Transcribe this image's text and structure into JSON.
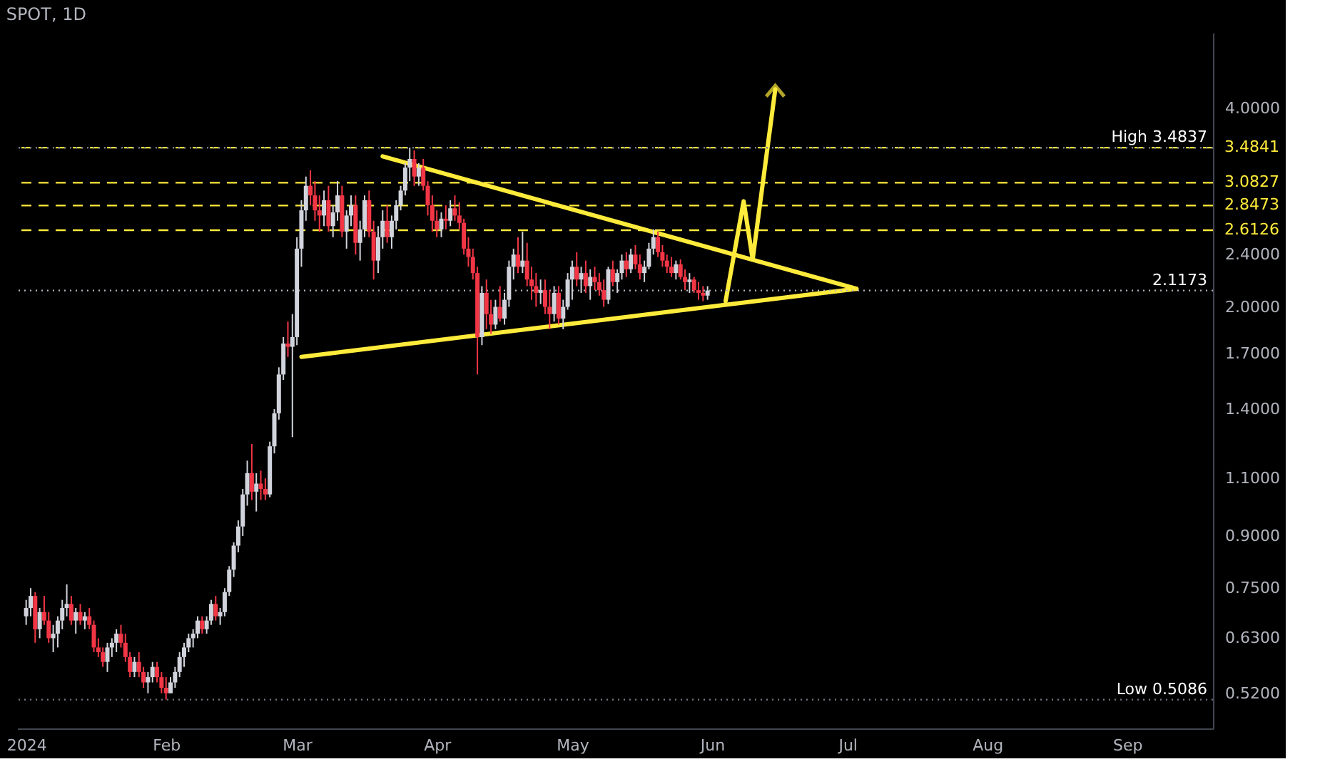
{
  "chart_data": {
    "type": "candlestick",
    "title": "SPOT, 1D",
    "x": [
      "2024-01-01",
      "2024-01-02",
      "2024-01-03",
      "2024-01-04",
      "2024-01-05",
      "2024-01-06",
      "2024-01-07",
      "2024-01-08",
      "2024-01-09",
      "2024-01-10",
      "2024-01-11",
      "2024-01-12",
      "2024-01-13",
      "2024-01-14",
      "2024-01-15",
      "2024-01-16",
      "2024-01-17",
      "2024-01-18",
      "2024-01-19",
      "2024-01-20",
      "2024-01-21",
      "2024-01-22",
      "2024-01-23",
      "2024-01-24",
      "2024-01-25",
      "2024-01-26",
      "2024-01-27",
      "2024-01-28",
      "2024-01-29",
      "2024-01-30",
      "2024-01-31",
      "2024-02-01",
      "2024-02-02",
      "2024-02-03",
      "2024-02-04",
      "2024-02-05",
      "2024-02-06",
      "2024-02-07",
      "2024-02-08",
      "2024-02-09",
      "2024-02-10",
      "2024-02-11",
      "2024-02-12",
      "2024-02-13",
      "2024-02-14",
      "2024-02-15",
      "2024-02-16",
      "2024-02-17",
      "2024-02-18",
      "2024-02-19",
      "2024-02-20",
      "2024-02-21",
      "2024-02-22",
      "2024-02-23",
      "2024-02-24",
      "2024-02-25",
      "2024-02-26",
      "2024-02-27",
      "2024-02-28",
      "2024-02-29",
      "2024-03-01",
      "2024-03-02",
      "2024-03-03",
      "2024-03-04",
      "2024-03-05",
      "2024-03-06",
      "2024-03-07",
      "2024-03-08",
      "2024-03-09",
      "2024-03-10",
      "2024-03-11",
      "2024-03-12",
      "2024-03-13",
      "2024-03-14",
      "2024-03-15",
      "2024-03-16",
      "2024-03-17",
      "2024-03-18",
      "2024-03-19",
      "2024-03-20",
      "2024-03-21",
      "2024-03-22",
      "2024-03-23",
      "2024-03-24",
      "2024-03-25",
      "2024-03-26",
      "2024-03-27",
      "2024-03-28",
      "2024-03-29",
      "2024-03-30",
      "2024-03-31",
      "2024-04-01",
      "2024-04-02",
      "2024-04-03",
      "2024-04-04",
      "2024-04-05",
      "2024-04-06",
      "2024-04-07",
      "2024-04-08",
      "2024-04-09",
      "2024-04-10",
      "2024-04-11",
      "2024-04-12",
      "2024-04-13",
      "2024-04-14",
      "2024-04-15",
      "2024-04-16",
      "2024-04-17",
      "2024-04-18",
      "2024-04-19",
      "2024-04-20",
      "2024-04-21",
      "2024-04-22",
      "2024-04-23",
      "2024-04-24",
      "2024-04-25",
      "2024-04-26",
      "2024-04-27",
      "2024-04-28",
      "2024-04-29",
      "2024-04-30",
      "2024-05-01",
      "2024-05-02",
      "2024-05-03",
      "2024-05-04",
      "2024-05-05",
      "2024-05-06",
      "2024-05-07",
      "2024-05-08",
      "2024-05-09",
      "2024-05-10",
      "2024-05-11",
      "2024-05-12",
      "2024-05-13",
      "2024-05-14",
      "2024-05-15",
      "2024-05-16",
      "2024-05-17",
      "2024-05-18",
      "2024-05-19",
      "2024-05-20",
      "2024-05-21",
      "2024-05-22",
      "2024-05-23",
      "2024-05-24",
      "2024-05-25",
      "2024-05-26",
      "2024-05-27",
      "2024-05-28",
      "2024-05-29",
      "2024-05-30",
      "2024-05-31"
    ],
    "ohlc": [
      [
        0.68,
        0.72,
        0.66,
        0.7
      ],
      [
        0.7,
        0.75,
        0.68,
        0.73
      ],
      [
        0.73,
        0.74,
        0.62,
        0.65
      ],
      [
        0.65,
        0.7,
        0.63,
        0.69
      ],
      [
        0.69,
        0.73,
        0.66,
        0.67
      ],
      [
        0.67,
        0.69,
        0.62,
        0.63
      ],
      [
        0.63,
        0.66,
        0.6,
        0.64
      ],
      [
        0.64,
        0.68,
        0.61,
        0.67
      ],
      [
        0.67,
        0.72,
        0.65,
        0.7
      ],
      [
        0.7,
        0.76,
        0.68,
        0.71
      ],
      [
        0.71,
        0.73,
        0.66,
        0.67
      ],
      [
        0.67,
        0.7,
        0.64,
        0.69
      ],
      [
        0.69,
        0.71,
        0.66,
        0.67
      ],
      [
        0.67,
        0.69,
        0.65,
        0.68
      ],
      [
        0.68,
        0.7,
        0.65,
        0.66
      ],
      [
        0.66,
        0.67,
        0.6,
        0.61
      ],
      [
        0.61,
        0.63,
        0.59,
        0.6
      ],
      [
        0.6,
        0.61,
        0.57,
        0.58
      ],
      [
        0.58,
        0.62,
        0.56,
        0.61
      ],
      [
        0.61,
        0.63,
        0.59,
        0.62
      ],
      [
        0.62,
        0.65,
        0.6,
        0.64
      ],
      [
        0.64,
        0.66,
        0.61,
        0.62
      ],
      [
        0.62,
        0.64,
        0.58,
        0.59
      ],
      [
        0.59,
        0.6,
        0.55,
        0.56
      ],
      [
        0.56,
        0.59,
        0.55,
        0.58
      ],
      [
        0.58,
        0.6,
        0.55,
        0.56
      ],
      [
        0.56,
        0.57,
        0.53,
        0.54
      ],
      [
        0.54,
        0.56,
        0.52,
        0.55
      ],
      [
        0.55,
        0.58,
        0.54,
        0.57
      ],
      [
        0.57,
        0.58,
        0.54,
        0.55
      ],
      [
        0.55,
        0.56,
        0.52,
        0.53
      ],
      [
        0.53,
        0.55,
        0.5086,
        0.52
      ],
      [
        0.52,
        0.55,
        0.52,
        0.54
      ],
      [
        0.54,
        0.57,
        0.53,
        0.56
      ],
      [
        0.56,
        0.6,
        0.55,
        0.59
      ],
      [
        0.59,
        0.62,
        0.57,
        0.61
      ],
      [
        0.61,
        0.64,
        0.6,
        0.63
      ],
      [
        0.63,
        0.65,
        0.61,
        0.64
      ],
      [
        0.64,
        0.68,
        0.63,
        0.67
      ],
      [
        0.67,
        0.68,
        0.64,
        0.65
      ],
      [
        0.65,
        0.68,
        0.64,
        0.67
      ],
      [
        0.67,
        0.72,
        0.66,
        0.71
      ],
      [
        0.71,
        0.73,
        0.67,
        0.68
      ],
      [
        0.68,
        0.7,
        0.66,
        0.69
      ],
      [
        0.69,
        0.75,
        0.68,
        0.74
      ],
      [
        0.74,
        0.81,
        0.73,
        0.8
      ],
      [
        0.8,
        0.88,
        0.78,
        0.87
      ],
      [
        0.87,
        0.95,
        0.85,
        0.93
      ],
      [
        0.93,
        1.06,
        0.9,
        1.04
      ],
      [
        1.04,
        1.17,
        1.0,
        1.12
      ],
      [
        1.12,
        1.24,
        1.02,
        1.05
      ],
      [
        1.05,
        1.12,
        0.98,
        1.08
      ],
      [
        1.08,
        1.13,
        1.02,
        1.06
      ],
      [
        1.06,
        1.1,
        1.02,
        1.04
      ],
      [
        1.04,
        1.25,
        1.03,
        1.23
      ],
      [
        1.23,
        1.4,
        1.2,
        1.38
      ],
      [
        1.38,
        1.62,
        1.35,
        1.58
      ],
      [
        1.58,
        1.8,
        1.55,
        1.76
      ],
      [
        1.76,
        1.9,
        1.68,
        1.74
      ],
      [
        1.74,
        1.95,
        1.27,
        1.8
      ],
      [
        1.8,
        2.55,
        1.75,
        2.45
      ],
      [
        2.45,
        2.9,
        2.3,
        2.8
      ],
      [
        2.8,
        3.15,
        2.7,
        3.05
      ],
      [
        3.05,
        3.22,
        2.85,
        2.95
      ],
      [
        2.95,
        3.1,
        2.7,
        2.8
      ],
      [
        2.8,
        2.95,
        2.6,
        2.75
      ],
      [
        2.75,
        3.0,
        2.65,
        2.9
      ],
      [
        2.9,
        3.05,
        2.6,
        2.65
      ],
      [
        2.65,
        2.85,
        2.55,
        2.78
      ],
      [
        2.78,
        3.1,
        2.7,
        2.95
      ],
      [
        2.95,
        3.05,
        2.55,
        2.6
      ],
      [
        2.6,
        2.8,
        2.45,
        2.75
      ],
      [
        2.75,
        2.95,
        2.65,
        2.85
      ],
      [
        2.85,
        2.95,
        2.4,
        2.5
      ],
      [
        2.5,
        2.7,
        2.35,
        2.62
      ],
      [
        2.62,
        2.95,
        2.55,
        2.9
      ],
      [
        2.9,
        3.0,
        2.55,
        2.6
      ],
      [
        2.6,
        2.7,
        2.2,
        2.35
      ],
      [
        2.35,
        2.65,
        2.25,
        2.55
      ],
      [
        2.55,
        2.8,
        2.45,
        2.7
      ],
      [
        2.7,
        2.85,
        2.5,
        2.55
      ],
      [
        2.55,
        2.75,
        2.45,
        2.7
      ],
      [
        2.7,
        2.9,
        2.62,
        2.85
      ],
      [
        2.85,
        3.05,
        2.8,
        3.0
      ],
      [
        3.0,
        3.3,
        2.95,
        3.25
      ],
      [
        3.25,
        3.4837,
        3.1,
        3.35
      ],
      [
        3.35,
        3.45,
        3.05,
        3.15
      ],
      [
        3.15,
        3.3,
        3.05,
        3.25
      ],
      [
        3.25,
        3.35,
        3.0,
        3.05
      ],
      [
        3.05,
        3.1,
        2.75,
        2.85
      ],
      [
        2.85,
        2.95,
        2.6,
        2.7
      ],
      [
        2.7,
        2.8,
        2.55,
        2.62
      ],
      [
        2.62,
        2.78,
        2.55,
        2.72
      ],
      [
        2.72,
        2.85,
        2.62,
        2.7
      ],
      [
        2.7,
        2.9,
        2.65,
        2.82
      ],
      [
        2.82,
        2.95,
        2.7,
        2.75
      ],
      [
        2.75,
        2.88,
        2.62,
        2.68
      ],
      [
        2.68,
        2.72,
        2.4,
        2.45
      ],
      [
        2.45,
        2.55,
        2.3,
        2.38
      ],
      [
        2.38,
        2.45,
        2.2,
        2.25
      ],
      [
        2.25,
        2.3,
        1.58,
        1.8
      ],
      [
        1.8,
        2.15,
        1.75,
        2.1
      ],
      [
        2.1,
        2.2,
        1.85,
        1.95
      ],
      [
        1.95,
        2.05,
        1.82,
        1.88
      ],
      [
        1.88,
        2.05,
        1.85,
        2.0
      ],
      [
        2.0,
        2.15,
        1.9,
        1.92
      ],
      [
        1.92,
        2.1,
        1.88,
        2.05
      ],
      [
        2.05,
        2.35,
        2.0,
        2.3
      ],
      [
        2.3,
        2.45,
        2.2,
        2.4
      ],
      [
        2.4,
        2.55,
        2.25,
        2.3
      ],
      [
        2.3,
        2.6,
        2.25,
        2.35
      ],
      [
        2.35,
        2.5,
        2.15,
        2.2
      ],
      [
        2.2,
        2.3,
        2.05,
        2.15
      ],
      [
        2.15,
        2.25,
        2.0,
        2.1
      ],
      [
        2.1,
        2.2,
        2.02,
        2.12
      ],
      [
        2.12,
        2.2,
        1.95,
        2.0
      ],
      [
        2.0,
        2.12,
        1.85,
        1.95
      ],
      [
        1.95,
        2.15,
        1.9,
        2.1
      ],
      [
        2.1,
        2.15,
        1.88,
        1.92
      ],
      [
        1.92,
        2.05,
        1.85,
        2.0
      ],
      [
        2.0,
        2.25,
        1.98,
        2.2
      ],
      [
        2.2,
        2.35,
        2.05,
        2.3
      ],
      [
        2.3,
        2.42,
        2.15,
        2.2
      ],
      [
        2.2,
        2.3,
        2.1,
        2.25
      ],
      [
        2.25,
        2.35,
        2.1,
        2.15
      ],
      [
        2.15,
        2.28,
        2.05,
        2.22
      ],
      [
        2.22,
        2.3,
        2.12,
        2.18
      ],
      [
        2.18,
        2.25,
        2.08,
        2.12
      ],
      [
        2.12,
        2.2,
        2.0,
        2.05
      ],
      [
        2.05,
        2.3,
        2.02,
        2.28
      ],
      [
        2.28,
        2.35,
        2.15,
        2.18
      ],
      [
        2.18,
        2.28,
        2.1,
        2.25
      ],
      [
        2.25,
        2.4,
        2.2,
        2.35
      ],
      [
        2.35,
        2.42,
        2.22,
        2.28
      ],
      [
        2.28,
        2.45,
        2.25,
        2.4
      ],
      [
        2.4,
        2.48,
        2.28,
        2.32
      ],
      [
        2.32,
        2.4,
        2.2,
        2.25
      ],
      [
        2.25,
        2.35,
        2.18,
        2.3
      ],
      [
        2.3,
        2.5,
        2.28,
        2.45
      ],
      [
        2.45,
        2.62,
        2.4,
        2.55
      ],
      [
        2.55,
        2.6,
        2.38,
        2.42
      ],
      [
        2.42,
        2.48,
        2.3,
        2.35
      ],
      [
        2.35,
        2.4,
        2.25,
        2.3
      ],
      [
        2.3,
        2.38,
        2.22,
        2.25
      ],
      [
        2.25,
        2.35,
        2.2,
        2.32
      ],
      [
        2.32,
        2.36,
        2.2,
        2.22
      ],
      [
        2.22,
        2.28,
        2.12,
        2.18
      ],
      [
        2.18,
        2.25,
        2.1,
        2.2
      ],
      [
        2.2,
        2.22,
        2.1,
        2.12
      ],
      [
        2.12,
        2.18,
        2.05,
        2.1
      ],
      [
        2.1,
        2.15,
        2.04,
        2.08
      ],
      [
        2.08,
        2.15,
        2.05,
        2.1173
      ]
    ],
    "series": [
      {
        "type": "line",
        "color": "#ffeb3b",
        "x": [
          "2024-03-20",
          "2024-07-03"
        ],
        "values": [
          3.38,
          2.13
        ]
      },
      {
        "type": "line",
        "color": "#ffeb3b",
        "x": [
          "2024-03-02",
          "2024-07-03"
        ],
        "values": [
          1.68,
          2.13
        ]
      },
      {
        "type": "line",
        "color": "#ffeb3b",
        "x": [
          "2024-06-04",
          "2024-06-08",
          "2024-06-10",
          "2024-06-15"
        ],
        "values": [
          2.04,
          2.89,
          2.36,
          4.27
        ]
      }
    ],
    "ref_lines": [
      {
        "axis": "y",
        "value": 3.4841,
        "label": "3.4841",
        "color": "#ffeb3b",
        "line_style": "dashed"
      },
      {
        "axis": "y",
        "value": 3.0827,
        "label": "3.0827",
        "color": "#ffeb3b",
        "line_style": "dashed"
      },
      {
        "axis": "y",
        "value": 2.8473,
        "label": "2.8473",
        "color": "#ffeb3b",
        "line_style": "dashed"
      },
      {
        "axis": "y",
        "value": 2.6126,
        "label": "2.6126",
        "color": "#ffeb3b",
        "line_style": "dashed"
      },
      {
        "axis": "y",
        "value": 3.4837,
        "label": "High 3.4837",
        "color": "#787b86",
        "line_style": "dotted"
      },
      {
        "axis": "y",
        "value": 2.1173,
        "label": "2.1173",
        "color": "#b2b5be",
        "line_style": "dotted"
      },
      {
        "axis": "y",
        "value": 0.5086,
        "label": "Low 0.5086",
        "color": "#787b86",
        "line_style": "dotted"
      }
    ],
    "log": true,
    "xlim": [
      "2023-12-30",
      "2024-09-20"
    ],
    "xticks": [
      {
        "value": "2024-01-01",
        "label": "2024"
      },
      {
        "value": "2024-02-01",
        "label": "Feb"
      },
      {
        "value": "2024-03-01",
        "label": "Mar"
      },
      {
        "value": "2024-04-01",
        "label": "Apr"
      },
      {
        "value": "2024-05-01",
        "label": "May"
      },
      {
        "value": "2024-06-01",
        "label": "Jun"
      },
      {
        "value": "2024-07-01",
        "label": "Jul"
      },
      {
        "value": "2024-08-01",
        "label": "Aug"
      },
      {
        "value": "2024-09-01",
        "label": "Sep"
      }
    ],
    "ylim": [
      0.46,
      5.2
    ],
    "yticks": [
      {
        "value": 0.52,
        "label": "0.5200"
      },
      {
        "value": 0.63,
        "label": "0.6300"
      },
      {
        "value": 0.75,
        "label": "0.7500"
      },
      {
        "value": 0.9,
        "label": "0.9000"
      },
      {
        "value": 1.1,
        "label": "1.1000"
      },
      {
        "value": 1.4,
        "label": "1.4000"
      },
      {
        "value": 1.7,
        "label": "1.7000"
      },
      {
        "value": 2.0,
        "label": "2.0000"
      },
      {
        "value": 2.4,
        "label": "2.4000"
      },
      {
        "value": 4.0,
        "label": "4.0000"
      }
    ],
    "grid": false
  }
}
